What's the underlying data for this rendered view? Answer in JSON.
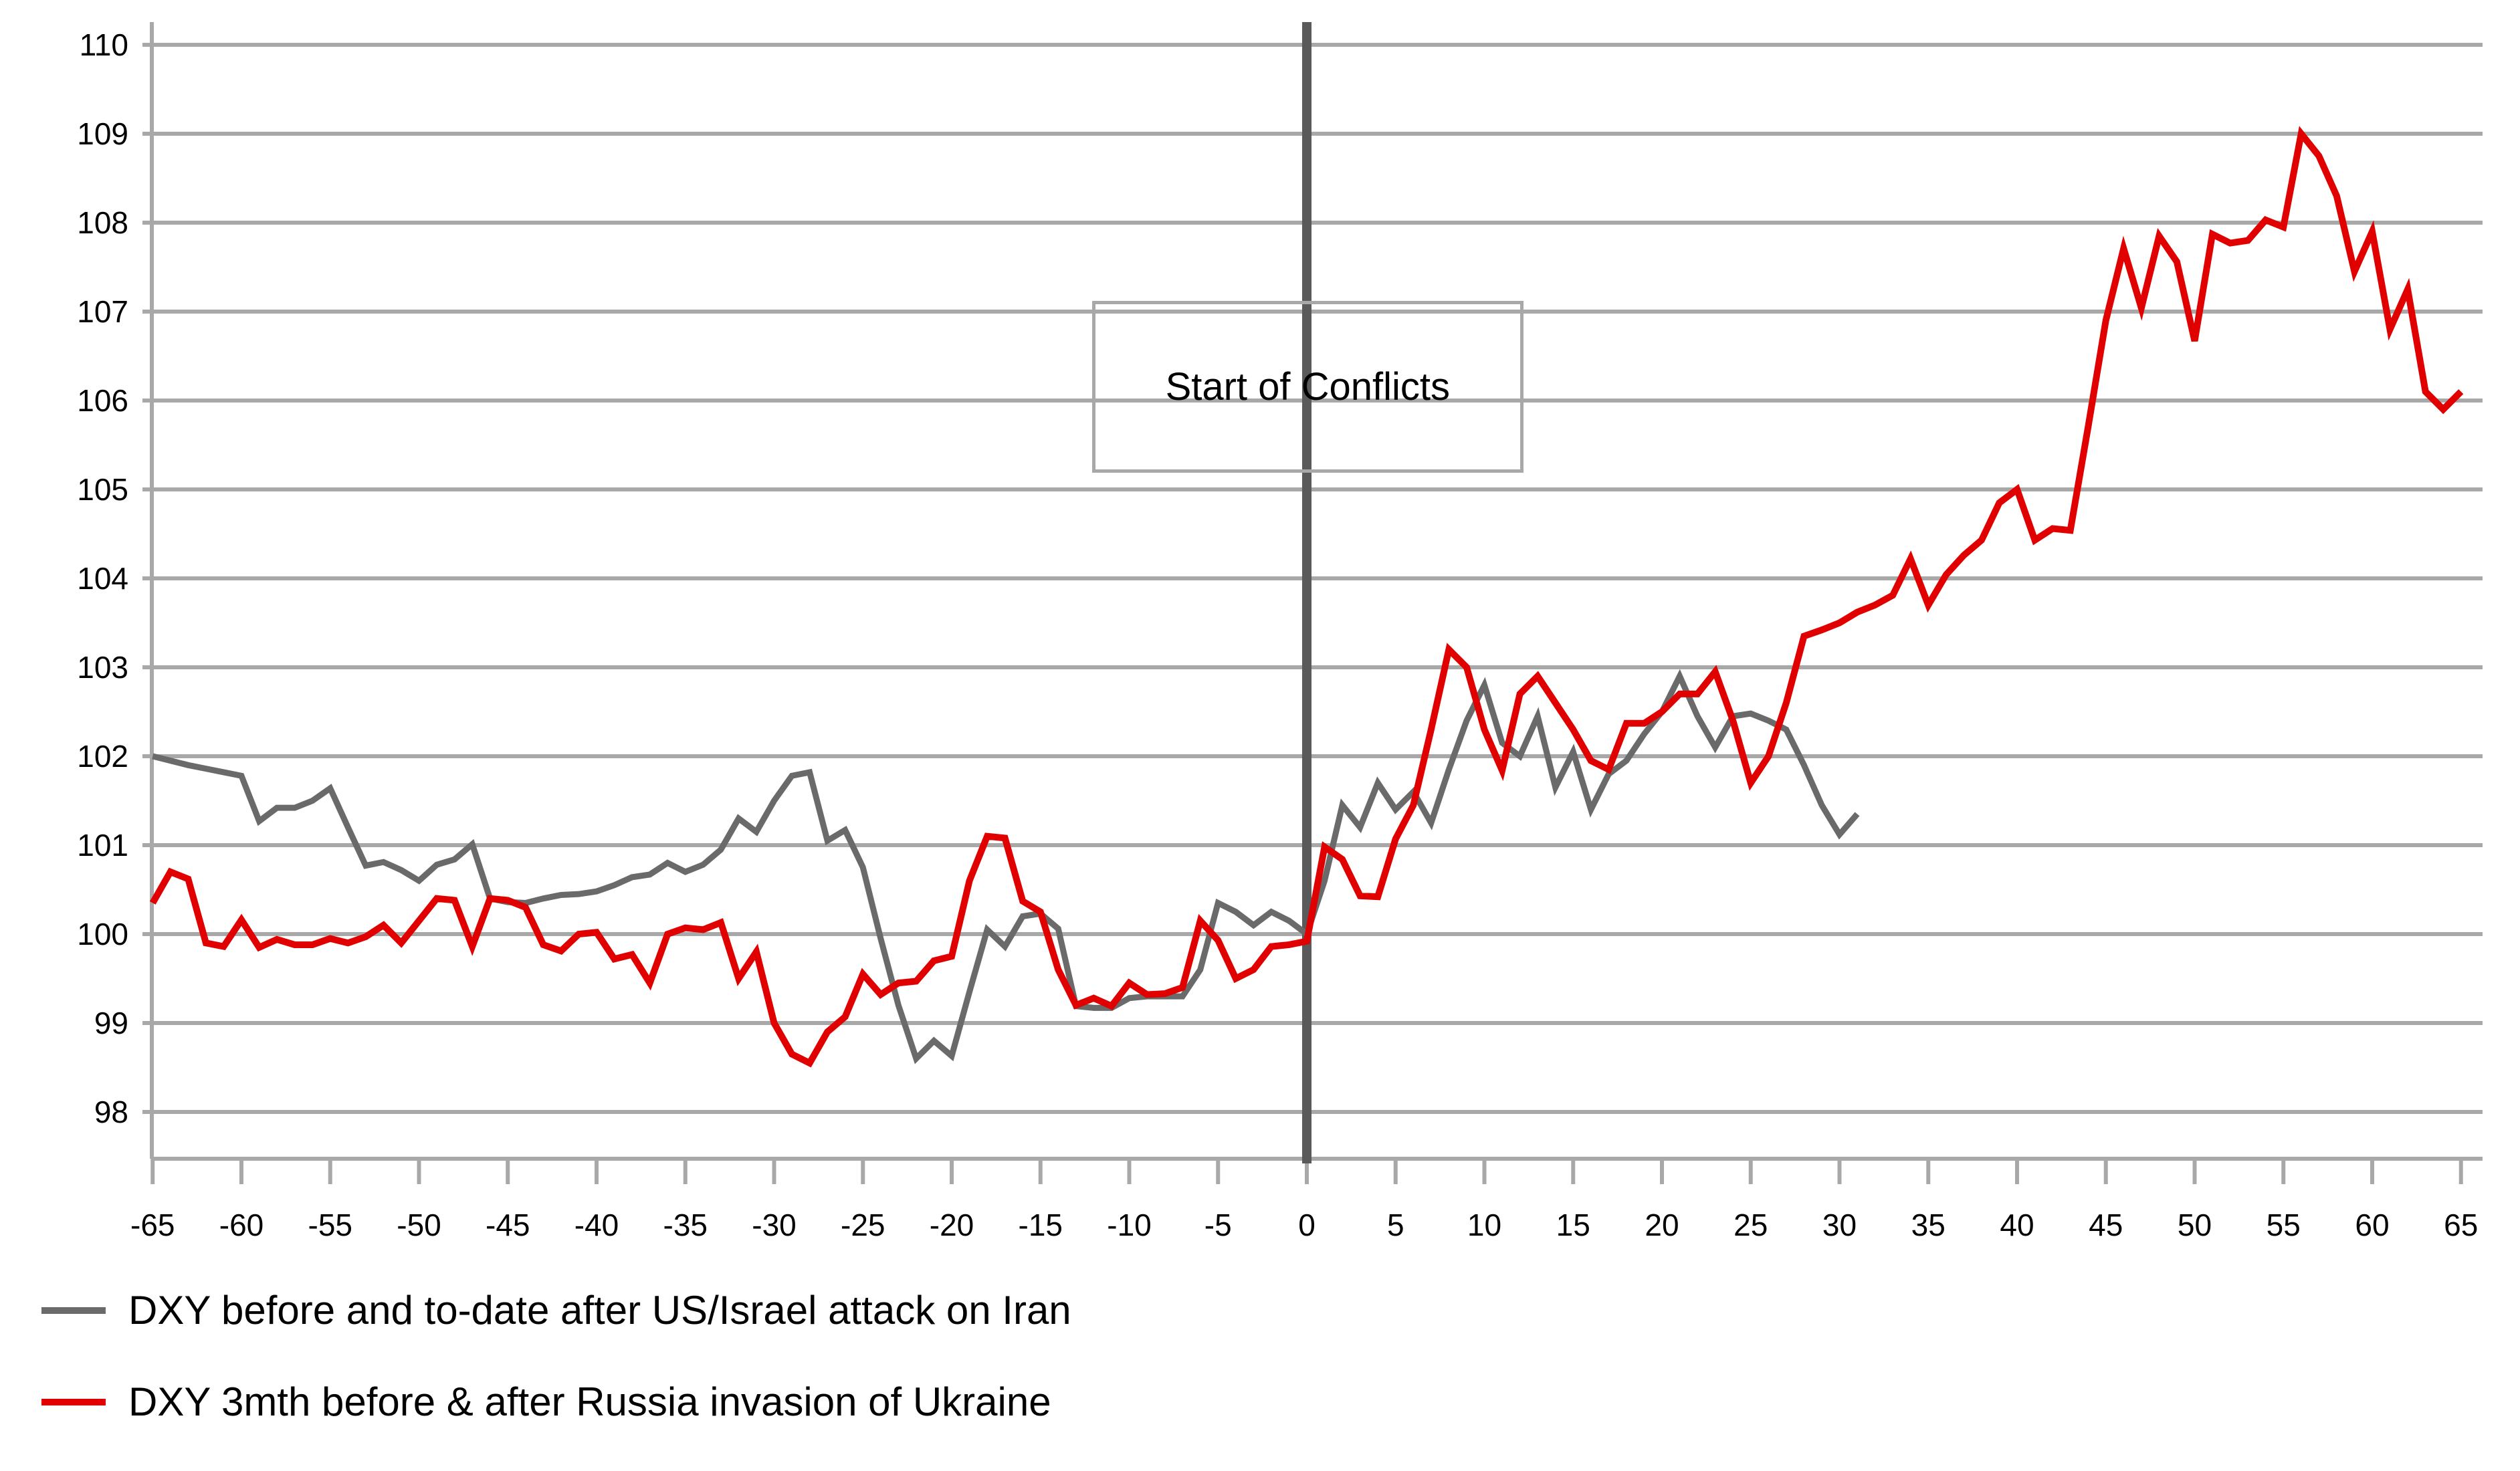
{
  "chart_data": {
    "type": "line",
    "title": "",
    "xlabel": "",
    "ylabel": "",
    "grid": "horizontal-only",
    "legend_position": "bottom-left",
    "background_color": "#ffffff",
    "gridline_color": "#a8a8a8",
    "axis_color": "#a8a8a8",
    "event_line_color": "#5a5a5a",
    "y_axis": {
      "min": 98,
      "max": 110,
      "ticks": [
        98,
        99,
        100,
        101,
        102,
        103,
        104,
        105,
        106,
        107,
        108,
        109,
        110
      ]
    },
    "x_axis": {
      "min": -65,
      "max": 65,
      "ticks": [
        -65,
        -60,
        -55,
        -50,
        -45,
        -40,
        -35,
        -30,
        -25,
        -20,
        -15,
        -10,
        -5,
        0,
        5,
        10,
        15,
        20,
        25,
        30,
        35,
        40,
        45,
        50,
        55,
        60,
        65
      ]
    },
    "event_line_x": 0,
    "annotation": {
      "label": "Start of Conflicts",
      "x_left_day": -12.1,
      "x_right_day": 12.2,
      "y_top_value": 107.12,
      "y_bottom_value": 105.19
    },
    "series": [
      {
        "id": "dxy-iran",
        "name": "DXY before and to-date after US/Israel attack on Iran",
        "color": "#6a6a6a",
        "stroke_width": 9,
        "x": [
          -65,
          -64,
          -63,
          -62,
          -61,
          -60,
          -59,
          -58,
          -57,
          -56,
          -55,
          -54,
          -53,
          -52,
          -51,
          -50,
          -49,
          -48,
          -47,
          -46,
          -45,
          -44,
          -43,
          -42,
          -41,
          -40,
          -39,
          -38,
          -37,
          -36,
          -35,
          -34,
          -33,
          -32,
          -31,
          -30,
          -29,
          -28,
          -27,
          -26,
          -25,
          -24,
          -23,
          -22,
          -21,
          -20,
          -19,
          -18,
          -17,
          -16,
          -15,
          -14,
          -13,
          -12,
          -11,
          -10,
          -9,
          -8,
          -7,
          -6,
          -5,
          -4,
          -3,
          -2,
          -1,
          0,
          1,
          2,
          3,
          4,
          5,
          6,
          7,
          8,
          9,
          10,
          11,
          12,
          13,
          14,
          15,
          16,
          17,
          18,
          19,
          20,
          21,
          22,
          23,
          24,
          25,
          26,
          27,
          28,
          29,
          30,
          31
        ],
        "values": [
          102.0,
          101.95,
          101.9,
          101.86,
          101.82,
          101.78,
          101.27,
          101.42,
          101.42,
          101.5,
          101.64,
          101.2,
          100.77,
          100.81,
          100.72,
          100.6,
          100.78,
          100.84,
          101.01,
          100.4,
          100.36,
          100.35,
          100.4,
          100.44,
          100.45,
          100.48,
          100.55,
          100.64,
          100.67,
          100.8,
          100.7,
          100.78,
          100.95,
          101.3,
          101.15,
          101.5,
          101.78,
          101.82,
          101.05,
          101.17,
          100.75,
          99.95,
          99.2,
          98.6,
          98.8,
          98.63,
          99.35,
          100.05,
          99.86,
          100.2,
          100.23,
          100.06,
          99.19,
          99.17,
          99.17,
          99.28,
          99.3,
          99.3,
          99.3,
          99.6,
          100.35,
          100.25,
          100.1,
          100.25,
          100.15,
          100.0,
          100.6,
          101.45,
          101.2,
          101.7,
          101.4,
          101.6,
          101.25,
          101.85,
          102.4,
          102.8,
          102.15,
          102.0,
          102.45,
          101.65,
          102.05,
          101.4,
          101.8,
          101.95,
          102.25,
          102.5,
          102.9,
          102.45,
          102.1,
          102.45,
          102.48,
          102.4,
          102.3,
          101.9,
          101.45,
          101.12,
          101.35
        ]
      },
      {
        "id": "dxy-ukraine",
        "name": "DXY 3mth before & after Russia invasion of Ukraine",
        "color": "#e00000",
        "stroke_width": 10,
        "x": [
          -65,
          -64,
          -63,
          -62,
          -61,
          -60,
          -59,
          -58,
          -57,
          -56,
          -55,
          -54,
          -53,
          -52,
          -51,
          -50,
          -49,
          -48,
          -47,
          -46,
          -45,
          -44,
          -43,
          -42,
          -41,
          -40,
          -39,
          -38,
          -37,
          -36,
          -35,
          -34,
          -33,
          -32,
          -31,
          -30,
          -29,
          -28,
          -27,
          -26,
          -25,
          -24,
          -23,
          -22,
          -21,
          -20,
          -19,
          -18,
          -17,
          -16,
          -15,
          -14,
          -13,
          -12,
          -11,
          -10,
          -9,
          -8,
          -7,
          -6,
          -5,
          -4,
          -3,
          -2,
          -1,
          0,
          1,
          2,
          3,
          4,
          5,
          6,
          7,
          8,
          9,
          10,
          11,
          12,
          13,
          14,
          15,
          16,
          17,
          18,
          19,
          20,
          21,
          22,
          23,
          24,
          25,
          26,
          27,
          28,
          29,
          30,
          31,
          32,
          33,
          34,
          35,
          36,
          37,
          38,
          39,
          40,
          41,
          42,
          43,
          44,
          45,
          46,
          47,
          48,
          49,
          50,
          51,
          52,
          53,
          54,
          55,
          56,
          57,
          58,
          59,
          60,
          61,
          62,
          63,
          64,
          65
        ],
        "values": [
          100.35,
          100.7,
          100.62,
          99.9,
          99.86,
          100.16,
          99.85,
          99.94,
          99.88,
          99.88,
          99.95,
          99.9,
          99.97,
          100.1,
          99.9,
          100.15,
          100.4,
          100.38,
          99.86,
          100.4,
          100.38,
          100.3,
          99.88,
          99.81,
          100.0,
          100.02,
          99.72,
          99.77,
          99.45,
          100.0,
          100.07,
          100.05,
          100.13,
          99.5,
          99.8,
          99.0,
          98.65,
          98.55,
          98.9,
          99.07,
          99.55,
          99.32,
          99.45,
          99.47,
          99.7,
          99.75,
          100.6,
          101.1,
          101.08,
          100.37,
          100.25,
          99.6,
          99.2,
          99.28,
          99.19,
          99.45,
          99.32,
          99.33,
          99.4,
          100.15,
          99.93,
          99.5,
          99.6,
          99.86,
          99.88,
          99.92,
          100.98,
          100.84,
          100.43,
          100.42,
          101.07,
          101.45,
          102.3,
          103.2,
          103.0,
          102.3,
          101.84,
          102.7,
          102.9,
          102.6,
          102.3,
          101.95,
          101.85,
          102.37,
          102.37,
          102.5,
          102.7,
          102.7,
          102.95,
          102.4,
          101.7,
          102.0,
          102.6,
          103.35,
          103.42,
          103.5,
          103.62,
          103.7,
          103.81,
          104.22,
          103.7,
          104.04,
          104.26,
          104.43,
          104.85,
          105.0,
          104.43,
          104.56,
          104.54,
          105.7,
          106.9,
          107.71,
          107.04,
          107.85,
          107.56,
          106.67,
          107.87,
          107.77,
          107.8,
          108.03,
          107.95,
          109.0,
          108.75,
          108.3,
          107.45,
          107.9,
          106.8,
          107.25,
          106.1,
          105.9,
          106.1
        ]
      }
    ]
  },
  "legend": {
    "items": [
      {
        "label": "DXY before and to-date after US/Israel attack on Iran"
      },
      {
        "label": "DXY 3mth before & after Russia invasion of Ukraine"
      }
    ]
  }
}
